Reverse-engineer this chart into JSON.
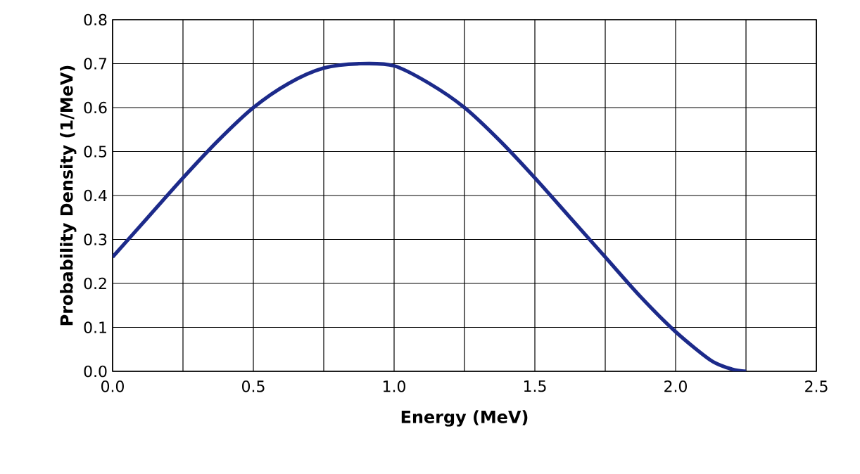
{
  "chart_data": {
    "type": "line",
    "xlabel": "Energy (MeV)",
    "ylabel": "Probability Density (1/MeV)",
    "x": [
      0,
      0.125,
      0.25,
      0.375,
      0.5,
      0.625,
      0.75,
      0.88,
      1.0,
      1.125,
      1.25,
      1.375,
      1.5,
      1.625,
      1.75,
      1.875,
      2.0,
      2.125,
      2.2,
      2.25
    ],
    "series": [
      {
        "color": "#1c2a8a",
        "values": [
          0.26,
          0.35,
          0.44,
          0.525,
          0.6,
          0.655,
          0.69,
          0.7,
          0.695,
          0.655,
          0.6,
          0.525,
          0.44,
          0.35,
          0.26,
          0.17,
          0.09,
          0.025,
          0.005,
          0.0
        ]
      }
    ],
    "xlim": [
      0,
      2.5
    ],
    "ylim": [
      0,
      0.8
    ],
    "xticks": [
      {
        "value": 0,
        "label": "0.0"
      },
      {
        "value": 0.25,
        "label": null
      },
      {
        "value": 0.5,
        "label": "0.5"
      },
      {
        "value": 0.75,
        "label": null
      },
      {
        "value": 1.0,
        "label": "1.0"
      },
      {
        "value": 1.25,
        "label": null
      },
      {
        "value": 1.5,
        "label": "1.5"
      },
      {
        "value": 1.75,
        "label": null
      },
      {
        "value": 2.0,
        "label": "2.0"
      },
      {
        "value": 2.25,
        "label": null
      },
      {
        "value": 2.5,
        "label": "2.5"
      }
    ],
    "yticks": [
      {
        "value": 0,
        "label": "0.0"
      },
      {
        "value": 0.1,
        "label": "0.1"
      },
      {
        "value": 0.2,
        "label": "0.2"
      },
      {
        "value": 0.3,
        "label": "0.3"
      },
      {
        "value": 0.4,
        "label": "0.4"
      },
      {
        "value": 0.5,
        "label": "0.5"
      },
      {
        "value": 0.6,
        "label": "0.6"
      },
      {
        "value": 0.7,
        "label": "0.7"
      },
      {
        "value": 0.8,
        "label": "0.8"
      }
    ],
    "grid": true,
    "marker": "none",
    "line_style": "solid"
  }
}
